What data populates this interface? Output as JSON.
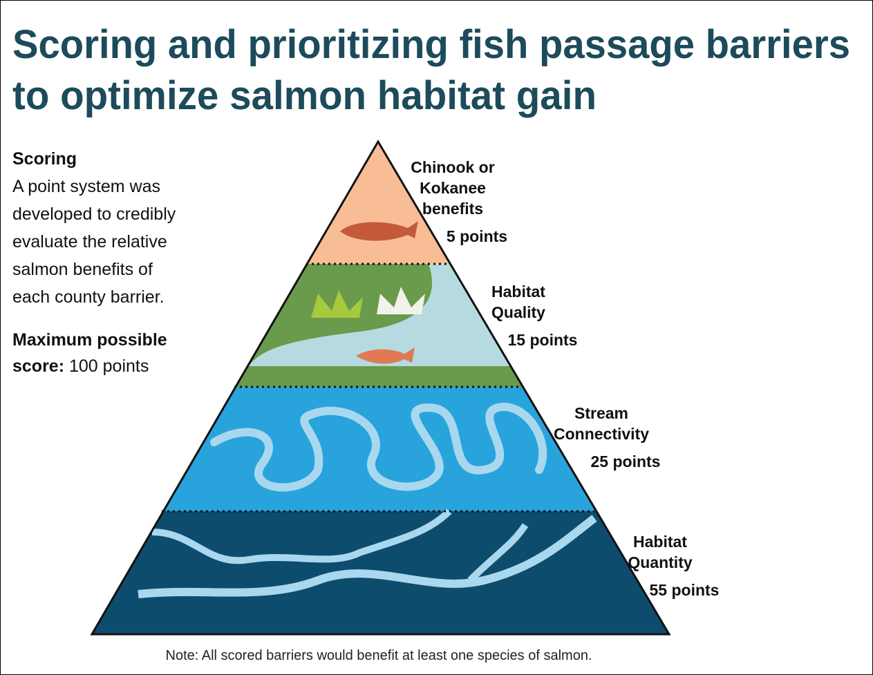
{
  "title": [
    "Scoring and prioritizing fish passage barriers",
    "to optimize salmon habitat gain"
  ],
  "sidebar": {
    "heading": "Scoring",
    "body": [
      "A point system was",
      "developed to credibly",
      "evaluate the relative",
      "salmon benefits of",
      "each county barrier."
    ],
    "max_label": [
      "Maximum possible",
      "score:"
    ],
    "max_value": "100 points"
  },
  "tiers": [
    {
      "label": [
        "Chinook or",
        "Kokanee",
        "benefits"
      ],
      "points": "5 points"
    },
    {
      "label": [
        "Habitat",
        "Quality"
      ],
      "points": "15 points"
    },
    {
      "label": [
        "Stream",
        "Connectivity"
      ],
      "points": "25 points"
    },
    {
      "label": [
        "Habitat",
        "Quantity"
      ],
      "points": "55 points"
    }
  ],
  "note": "Note: All scored barriers would benefit at least one species of salmon."
}
